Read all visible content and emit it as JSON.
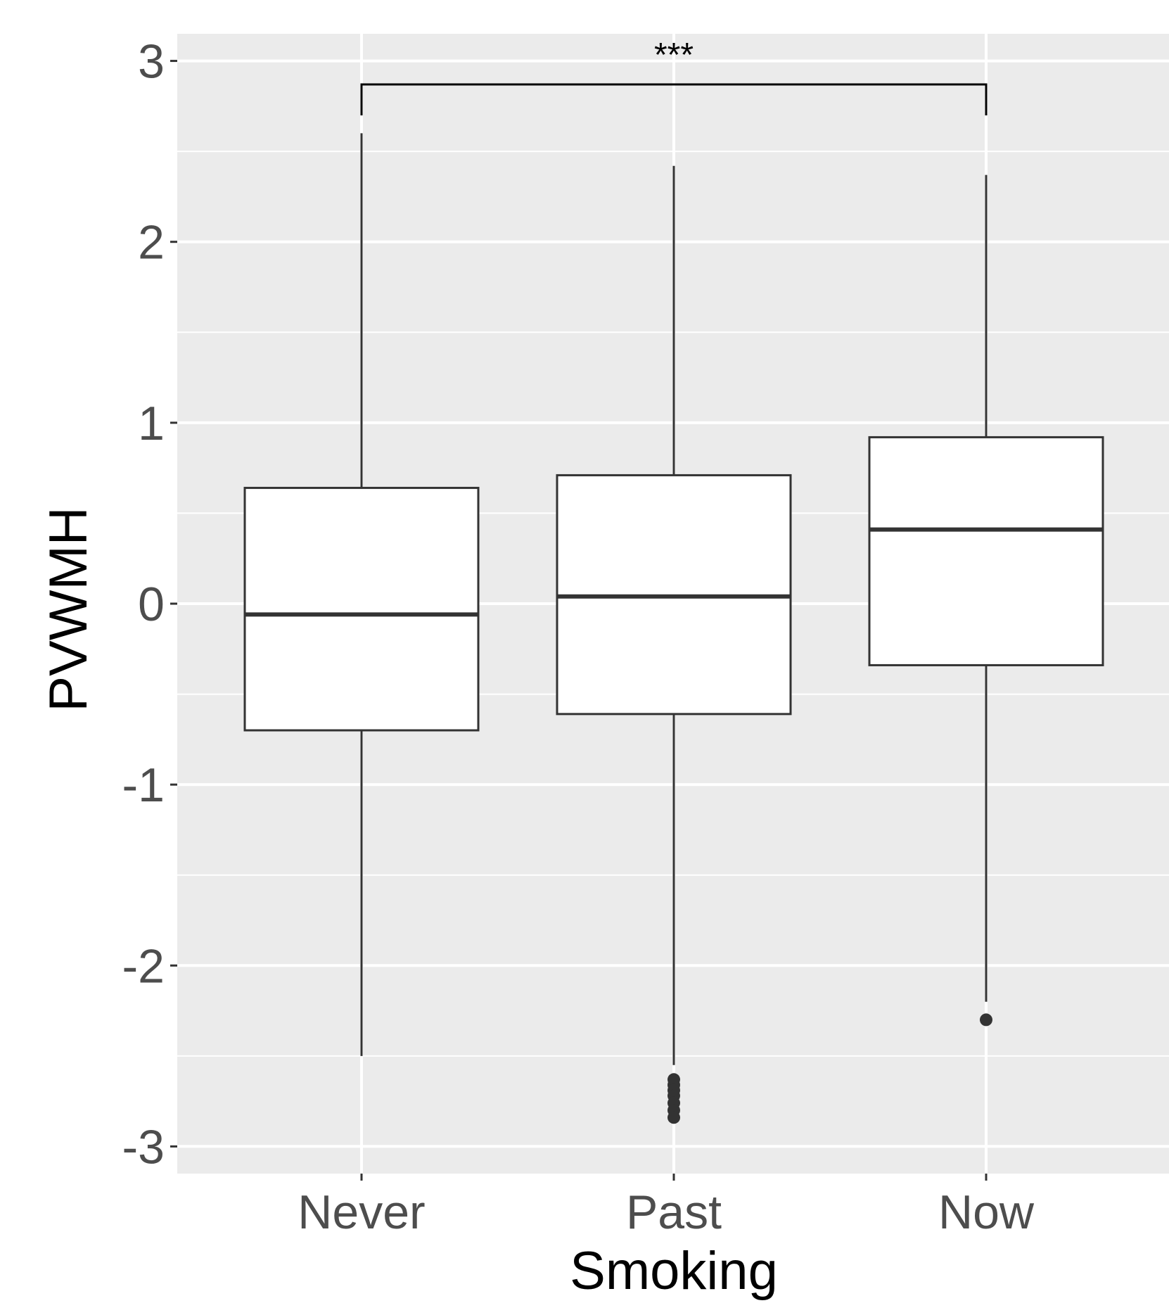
{
  "chart_data": {
    "type": "box",
    "xlabel": "Smoking",
    "ylabel": "PVWMH",
    "ylim": [
      -3.15,
      3.15
    ],
    "yticks": [
      3,
      2,
      1,
      0,
      -1,
      -2,
      -3
    ],
    "ytick_labels": [
      "3",
      "2",
      "1",
      "0",
      "-1",
      "-2",
      "-3"
    ],
    "categories": [
      "Never",
      "Past",
      "Now"
    ],
    "grid": true,
    "boxes": [
      {
        "category": "Never",
        "whisker_low": -2.5,
        "q1": -0.7,
        "median": -0.06,
        "q3": 0.64,
        "whisker_high": 2.6,
        "outliers": []
      },
      {
        "category": "Past",
        "whisker_low": -2.55,
        "q1": -0.61,
        "median": 0.04,
        "q3": 0.71,
        "whisker_high": 2.42,
        "outliers": [
          -2.63,
          -2.66,
          -2.69,
          -2.72,
          -2.76,
          -2.8,
          -2.84
        ]
      },
      {
        "category": "Now",
        "whisker_low": -2.2,
        "q1": -0.34,
        "median": 0.41,
        "q3": 0.92,
        "whisker_high": 2.37,
        "outliers": [
          -2.3
        ]
      }
    ],
    "significance": [
      {
        "from": "Never",
        "to": "Now",
        "y": 2.87,
        "label": "***"
      }
    ],
    "colors": {
      "panel_background": "#ebebeb",
      "grid_line": "#ffffff",
      "box_fill": "#ffffff",
      "box_stroke": "#333333",
      "outlier": "#333333",
      "tick_label": "#4d4d4d",
      "axis_title": "#000000"
    }
  }
}
